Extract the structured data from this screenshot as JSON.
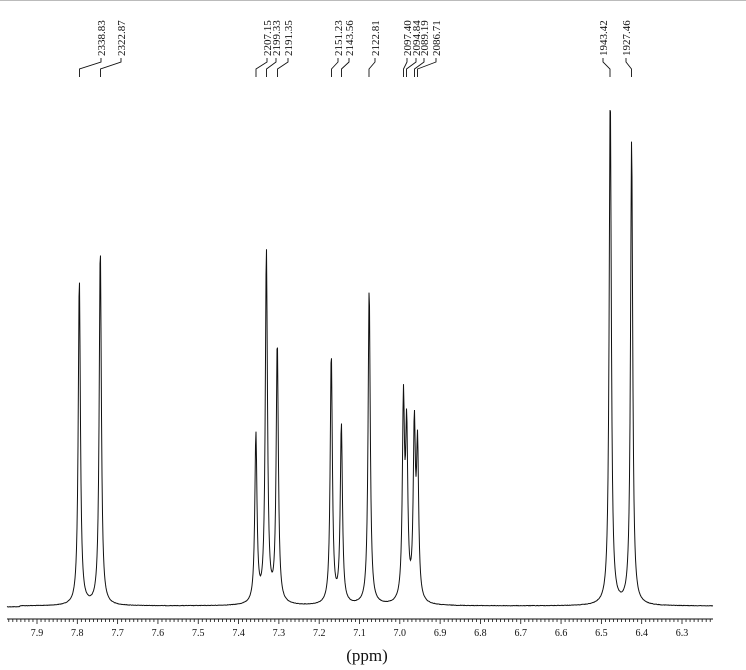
{
  "chart_data": {
    "type": "line",
    "title": "",
    "xlabel": "(ppm)",
    "ylabel": "",
    "xlim": [
      8.0,
      6.2
    ],
    "ylim": [
      0,
      100
    ],
    "x_reversed": true,
    "grid": false,
    "legend": "none",
    "x_ticks": [
      "7.9",
      "7.8",
      "7.7",
      "7.6",
      "7.5",
      "7.4",
      "7.3",
      "7.2",
      "7.1",
      "7.0",
      "6.9",
      "6.8",
      "6.7",
      "6.6",
      "6.5",
      "6.4",
      "6.3"
    ],
    "peaks": [
      {
        "ppm": 7.795,
        "height": 64,
        "label": "2338.83"
      },
      {
        "ppm": 7.743,
        "height": 70,
        "label": "2322.87"
      },
      {
        "ppm": 7.357,
        "height": 33,
        "label": "2207.15"
      },
      {
        "ppm": 7.331,
        "height": 69,
        "label": "2199.33"
      },
      {
        "ppm": 7.304,
        "height": 51,
        "label": "2191.35"
      },
      {
        "ppm": 7.17,
        "height": 49,
        "label": "2151.23"
      },
      {
        "ppm": 7.145,
        "height": 35,
        "label": "2143.56"
      },
      {
        "ppm": 7.076,
        "height": 62,
        "label": "2122.81"
      },
      {
        "ppm": 6.991,
        "height": 38,
        "label": "2097.40"
      },
      {
        "ppm": 6.983,
        "height": 32,
        "label": "2094.84"
      },
      {
        "ppm": 6.964,
        "height": 33,
        "label": "2089.19"
      },
      {
        "ppm": 6.956,
        "height": 29,
        "label": "2086.71"
      },
      {
        "ppm": 6.478,
        "height": 100,
        "label": "1943.42"
      },
      {
        "ppm": 6.425,
        "height": 91,
        "label": "1927.46"
      }
    ]
  }
}
